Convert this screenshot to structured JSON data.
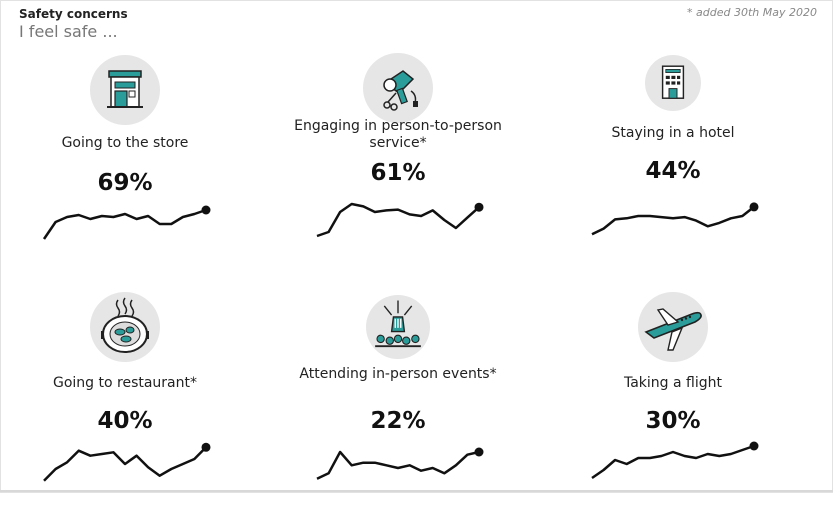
{
  "header": {
    "title": "Safety concerns",
    "subtitle": "I feel safe ...",
    "note": "* added 30th May 2020"
  },
  "chart_data": [
    {
      "type": "line",
      "label": "Going to the store",
      "value_label": "69%",
      "icon": "store-icon",
      "values": [
        40,
        57,
        62,
        64,
        60,
        63,
        62,
        65,
        60,
        63,
        55,
        55,
        62,
        65,
        69
      ]
    },
    {
      "type": "line",
      "label": "Engaging in person-to-person service*",
      "value_label": "61%",
      "icon": "hairdryer-icon",
      "values": [
        25,
        30,
        55,
        65,
        62,
        55,
        57,
        58,
        52,
        50,
        57,
        45,
        35,
        48,
        61
      ]
    },
    {
      "type": "line",
      "label": "Staying in a hotel",
      "value_label": "44%",
      "icon": "hotel-icon",
      "values": [
        20,
        25,
        33,
        34,
        36,
        36,
        35,
        34,
        35,
        32,
        27,
        30,
        34,
        36,
        44
      ]
    },
    {
      "type": "line",
      "label": "Going to restaurant*",
      "value_label": "40%",
      "icon": "restaurant-icon",
      "values": [
        20,
        27,
        31,
        38,
        35,
        36,
        37,
        30,
        35,
        28,
        23,
        27,
        30,
        33,
        40
      ]
    },
    {
      "type": "line",
      "label": "Attending in-person events*",
      "value_label": "22%",
      "icon": "concert-icon",
      "values": [
        12,
        14,
        22,
        17,
        18,
        18,
        17,
        16,
        17,
        15,
        16,
        14,
        17,
        21,
        22
      ]
    },
    {
      "type": "line",
      "label": "Taking a flight",
      "value_label": "30%",
      "icon": "airplane-icon",
      "values": [
        14,
        18,
        23,
        21,
        24,
        24,
        25,
        27,
        25,
        24,
        26,
        25,
        26,
        28,
        30
      ]
    }
  ],
  "colors": {
    "teal": "#2a9d9a",
    "icon_bg": "#e6e6e6",
    "line": "#111111"
  }
}
